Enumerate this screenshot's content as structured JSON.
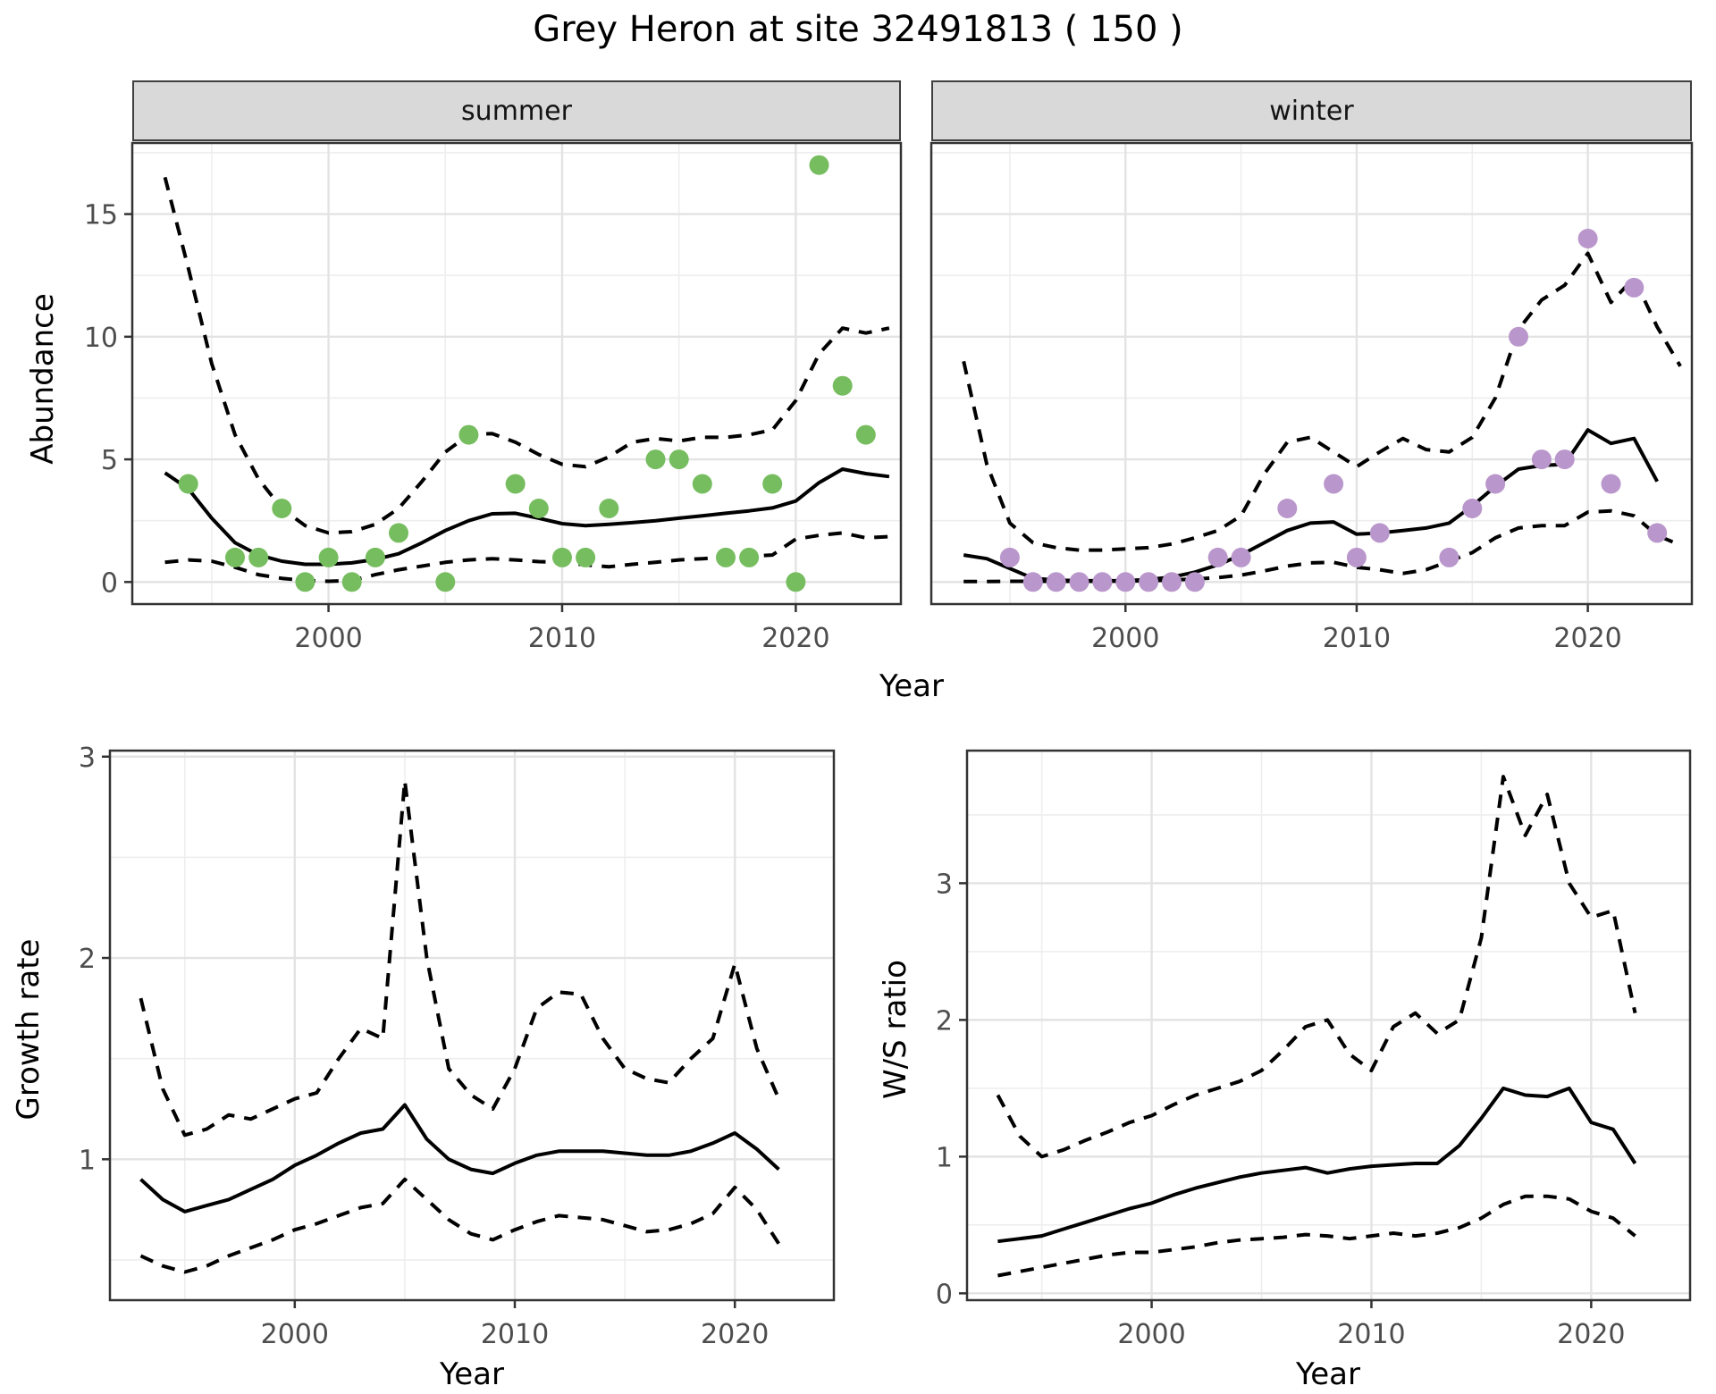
{
  "title": "Grey Heron at site 32491813 ( 150 )",
  "facets": {
    "summer": "summer",
    "winter": "winter"
  },
  "axis_titles": {
    "x": "Year",
    "y_abundance": "Abundance",
    "y_growth": "Growth rate",
    "y_ws": "W/S ratio"
  },
  "colors": {
    "summer_point": "#76bd5f",
    "winter_point": "#b996cb",
    "line": "#000000",
    "grid_major": "#e3e3e3",
    "grid_minor": "#eeeeee",
    "strip_bg": "#d9d9d9",
    "panel_border": "#333333",
    "tick_text": "#4d4d4d"
  },
  "chart_data": [
    {
      "id": "abundance-summer",
      "type": "scatter",
      "facet": "summer",
      "xlabel": "Year",
      "ylabel": "Abundance",
      "xlim": [
        1991.6,
        2024.5
      ],
      "ylim": [
        -0.9,
        17.9
      ],
      "x_ticks": [
        2000,
        2010,
        2020
      ],
      "x_minor": [
        1995,
        2005,
        2015
      ],
      "y_ticks": [
        0,
        5,
        10,
        15
      ],
      "y_minor": [
        2.5,
        7.5,
        12.5,
        17.5
      ],
      "points": {
        "years": [
          1994,
          1996,
          1997,
          1998,
          1999,
          2000,
          2001,
          2002,
          2003,
          2005,
          2006,
          2008,
          2009,
          2010,
          2011,
          2012,
          2014,
          2015,
          2016,
          2017,
          2018,
          2019,
          2020,
          2021,
          2022,
          2023
        ],
        "values": [
          4,
          1,
          1,
          3,
          0,
          1,
          0,
          1,
          2,
          0,
          6,
          4,
          3,
          1,
          1,
          3,
          5,
          5,
          4,
          1,
          1,
          4,
          0,
          17,
          8,
          6
        ]
      },
      "series": [
        {
          "name": "fit",
          "style": "solid",
          "years": [
            1993,
            1994,
            1995,
            1996,
            1997,
            1998,
            1999,
            2000,
            2001,
            2002,
            2003,
            2004,
            2005,
            2006,
            2007,
            2008,
            2009,
            2010,
            2011,
            2012,
            2013,
            2014,
            2015,
            2016,
            2017,
            2018,
            2019,
            2020,
            2021,
            2022,
            2023,
            2024
          ],
          "values": [
            4.45,
            3.8,
            2.6,
            1.6,
            1.1,
            0.85,
            0.72,
            0.72,
            0.78,
            0.92,
            1.15,
            1.6,
            2.1,
            2.5,
            2.78,
            2.8,
            2.6,
            2.38,
            2.3,
            2.35,
            2.42,
            2.5,
            2.6,
            2.7,
            2.8,
            2.9,
            3.02,
            3.3,
            4.05,
            4.6,
            4.42,
            4.3
          ]
        },
        {
          "name": "upper",
          "style": "dashed",
          "years": [
            1993,
            1994,
            1995,
            1996,
            1997,
            1998,
            1999,
            2000,
            2001,
            2002,
            2003,
            2004,
            2005,
            2006,
            2007,
            2008,
            2009,
            2010,
            2011,
            2012,
            2013,
            2014,
            2015,
            2016,
            2017,
            2018,
            2019,
            2020,
            2021,
            2022,
            2023,
            2024
          ],
          "values": [
            16.5,
            12.8,
            8.9,
            6.0,
            4.2,
            3.0,
            2.3,
            2.0,
            2.05,
            2.35,
            3.0,
            4.1,
            5.3,
            6.0,
            6.05,
            5.7,
            5.2,
            4.8,
            4.7,
            5.1,
            5.7,
            5.85,
            5.75,
            5.9,
            5.9,
            6.0,
            6.2,
            7.4,
            9.3,
            10.35,
            10.15,
            10.35
          ]
        },
        {
          "name": "lower",
          "style": "dashed",
          "years": [
            1993,
            1994,
            1995,
            1996,
            1997,
            1998,
            1999,
            2000,
            2001,
            2002,
            2003,
            2004,
            2005,
            2006,
            2007,
            2008,
            2009,
            2010,
            2011,
            2012,
            2013,
            2014,
            2015,
            2016,
            2017,
            2018,
            2019,
            2020,
            2021,
            2022,
            2023,
            2024
          ],
          "values": [
            0.8,
            0.9,
            0.85,
            0.6,
            0.3,
            0.15,
            0.06,
            0.03,
            0.06,
            0.3,
            0.5,
            0.65,
            0.8,
            0.9,
            0.95,
            0.9,
            0.83,
            0.8,
            0.7,
            0.62,
            0.72,
            0.8,
            0.9,
            0.95,
            1.0,
            1.05,
            1.1,
            1.75,
            1.9,
            2.0,
            1.8,
            1.85
          ]
        }
      ]
    },
    {
      "id": "abundance-winter",
      "type": "scatter",
      "facet": "winter",
      "xlabel": "Year",
      "ylabel": "Abundance",
      "xlim": [
        1991.6,
        2024.5
      ],
      "ylim": [
        -0.9,
        17.9
      ],
      "x_ticks": [
        2000,
        2010,
        2020
      ],
      "x_minor": [
        1995,
        2005,
        2015
      ],
      "y_ticks": [
        0,
        5,
        10,
        15
      ],
      "y_minor": [
        2.5,
        7.5,
        12.5,
        17.5
      ],
      "points": {
        "years": [
          1995,
          1996,
          1997,
          1998,
          1999,
          2000,
          2001,
          2002,
          2003,
          2004,
          2005,
          2007,
          2009,
          2010,
          2011,
          2014,
          2015,
          2016,
          2017,
          2018,
          2019,
          2020,
          2021,
          2022,
          2023
        ],
        "values": [
          1,
          0,
          0,
          0,
          0,
          0,
          0,
          0,
          0,
          1,
          1,
          3,
          4,
          1,
          2,
          1,
          3,
          4,
          10,
          5,
          5,
          14,
          4,
          12,
          2
        ]
      },
      "series": [
        {
          "name": "fit",
          "style": "solid",
          "years": [
            1993,
            1994,
            1995,
            1996,
            1997,
            1998,
            1999,
            2000,
            2001,
            2002,
            2003,
            2004,
            2005,
            2006,
            2007,
            2008,
            2009,
            2010,
            2011,
            2012,
            2013,
            2014,
            2015,
            2016,
            2017,
            2018,
            2019,
            2020,
            2021,
            2022,
            2023
          ],
          "values": [
            1.1,
            0.95,
            0.55,
            0.15,
            0.08,
            0.05,
            0.05,
            0.06,
            0.1,
            0.2,
            0.4,
            0.7,
            1.1,
            1.6,
            2.1,
            2.4,
            2.45,
            1.95,
            2.0,
            2.1,
            2.2,
            2.4,
            3.1,
            3.9,
            4.6,
            4.75,
            4.8,
            6.2,
            5.65,
            5.85,
            4.1
          ]
        },
        {
          "name": "upper",
          "style": "dashed",
          "years": [
            1993,
            1994,
            1995,
            1996,
            1997,
            1998,
            1999,
            2000,
            2001,
            2002,
            2003,
            2004,
            2005,
            2006,
            2007,
            2008,
            2009,
            2010,
            2011,
            2012,
            2013,
            2014,
            2015,
            2016,
            2017,
            2018,
            2019,
            2020,
            2021,
            2022,
            2023,
            2024
          ],
          "values": [
            9.0,
            4.8,
            2.4,
            1.6,
            1.4,
            1.3,
            1.3,
            1.35,
            1.4,
            1.55,
            1.8,
            2.1,
            2.7,
            4.4,
            5.7,
            5.9,
            5.3,
            4.7,
            5.3,
            5.85,
            5.4,
            5.3,
            5.9,
            7.5,
            10.3,
            11.5,
            12.1,
            13.4,
            11.4,
            12.4,
            10.4,
            8.8
          ]
        },
        {
          "name": "lower",
          "style": "dashed",
          "years": [
            1993,
            1994,
            1995,
            1996,
            1997,
            1998,
            1999,
            2000,
            2001,
            2002,
            2003,
            2004,
            2005,
            2006,
            2007,
            2008,
            2009,
            2010,
            2011,
            2012,
            2013,
            2014,
            2015,
            2016,
            2017,
            2018,
            2019,
            2020,
            2021,
            2022,
            2023,
            2024
          ],
          "values": [
            0.02,
            0.02,
            0.03,
            0.03,
            0.03,
            0.03,
            0.03,
            0.04,
            0.05,
            0.08,
            0.12,
            0.18,
            0.28,
            0.45,
            0.65,
            0.78,
            0.8,
            0.6,
            0.5,
            0.35,
            0.5,
            0.85,
            1.2,
            1.8,
            2.2,
            2.3,
            2.3,
            2.85,
            2.9,
            2.7,
            1.9,
            1.5
          ]
        }
      ]
    },
    {
      "id": "growth-rate",
      "type": "line",
      "xlabel": "Year",
      "ylabel": "Growth rate",
      "xlim": [
        1991.6,
        2024.5
      ],
      "ylim": [
        0.3,
        3.03
      ],
      "x_ticks": [
        2000,
        2010,
        2020
      ],
      "x_minor": [
        1995,
        2005,
        2015
      ],
      "y_ticks": [
        1,
        2,
        3
      ],
      "y_minor": [
        0.5,
        1.5,
        2.5
      ],
      "series": [
        {
          "name": "fit",
          "style": "solid",
          "years": [
            1993,
            1994,
            1995,
            1996,
            1997,
            1998,
            1999,
            2000,
            2001,
            2002,
            2003,
            2004,
            2005,
            2006,
            2007,
            2008,
            2009,
            2010,
            2011,
            2012,
            2013,
            2014,
            2015,
            2016,
            2017,
            2018,
            2019,
            2020,
            2021,
            2022
          ],
          "values": [
            0.9,
            0.8,
            0.74,
            0.77,
            0.8,
            0.85,
            0.9,
            0.97,
            1.02,
            1.08,
            1.13,
            1.15,
            1.27,
            1.1,
            1.0,
            0.95,
            0.93,
            0.98,
            1.02,
            1.04,
            1.04,
            1.04,
            1.03,
            1.02,
            1.02,
            1.04,
            1.08,
            1.13,
            1.05,
            0.95
          ]
        },
        {
          "name": "upper",
          "style": "dashed",
          "years": [
            1993,
            1994,
            1995,
            1996,
            1997,
            1998,
            1999,
            2000,
            2001,
            2002,
            2003,
            2004,
            2005,
            2006,
            2007,
            2008,
            2009,
            2010,
            2011,
            2012,
            2013,
            2014,
            2015,
            2016,
            2017,
            2018,
            2019,
            2020,
            2021,
            2022
          ],
          "values": [
            1.8,
            1.35,
            1.12,
            1.15,
            1.22,
            1.2,
            1.25,
            1.3,
            1.33,
            1.5,
            1.65,
            1.6,
            2.88,
            2.0,
            1.45,
            1.32,
            1.25,
            1.45,
            1.75,
            1.83,
            1.82,
            1.6,
            1.45,
            1.4,
            1.38,
            1.5,
            1.6,
            1.97,
            1.55,
            1.3
          ]
        },
        {
          "name": "lower",
          "style": "dashed",
          "years": [
            1993,
            1994,
            1995,
            1996,
            1997,
            1998,
            1999,
            2000,
            2001,
            2002,
            2003,
            2004,
            2005,
            2006,
            2007,
            2008,
            2009,
            2010,
            2011,
            2012,
            2013,
            2014,
            2015,
            2016,
            2017,
            2018,
            2019,
            2020,
            2021,
            2022
          ],
          "values": [
            0.52,
            0.47,
            0.44,
            0.47,
            0.52,
            0.56,
            0.6,
            0.65,
            0.68,
            0.72,
            0.76,
            0.78,
            0.9,
            0.8,
            0.7,
            0.63,
            0.6,
            0.65,
            0.69,
            0.72,
            0.71,
            0.7,
            0.67,
            0.64,
            0.65,
            0.68,
            0.73,
            0.86,
            0.75,
            0.58
          ]
        }
      ]
    },
    {
      "id": "ws-ratio",
      "type": "line",
      "xlabel": "Year",
      "ylabel": "W/S ratio",
      "xlim": [
        1991.6,
        2024.5
      ],
      "ylim": [
        -0.05,
        3.97
      ],
      "x_ticks": [
        2000,
        2010,
        2020
      ],
      "x_minor": [
        1995,
        2005,
        2015
      ],
      "y_ticks": [
        0,
        1,
        2,
        3
      ],
      "y_minor": [
        0.5,
        1.5,
        2.5,
        3.5
      ],
      "series": [
        {
          "name": "fit",
          "style": "solid",
          "years": [
            1993,
            1994,
            1995,
            1996,
            1997,
            1998,
            1999,
            2000,
            2001,
            2002,
            2003,
            2004,
            2005,
            2006,
            2007,
            2008,
            2009,
            2010,
            2011,
            2012,
            2013,
            2014,
            2015,
            2016,
            2017,
            2018,
            2019,
            2020,
            2021,
            2022
          ],
          "values": [
            0.38,
            0.4,
            0.42,
            0.47,
            0.52,
            0.57,
            0.62,
            0.66,
            0.72,
            0.77,
            0.81,
            0.85,
            0.88,
            0.9,
            0.92,
            0.88,
            0.91,
            0.93,
            0.94,
            0.95,
            0.95,
            1.08,
            1.28,
            1.5,
            1.45,
            1.44,
            1.5,
            1.25,
            1.2,
            0.95
          ]
        },
        {
          "name": "upper",
          "style": "dashed",
          "years": [
            1993,
            1994,
            1995,
            1996,
            1997,
            1998,
            1999,
            2000,
            2001,
            2002,
            2003,
            2004,
            2005,
            2006,
            2007,
            2008,
            2009,
            2010,
            2011,
            2012,
            2013,
            2014,
            2015,
            2016,
            2017,
            2018,
            2019,
            2020,
            2021,
            2022
          ],
          "values": [
            1.45,
            1.15,
            1.0,
            1.05,
            1.12,
            1.18,
            1.25,
            1.3,
            1.38,
            1.45,
            1.5,
            1.55,
            1.63,
            1.78,
            1.95,
            2.0,
            1.75,
            1.63,
            1.95,
            2.05,
            1.9,
            2.0,
            2.6,
            3.78,
            3.35,
            3.65,
            3.0,
            2.75,
            2.8,
            2.05
          ]
        },
        {
          "name": "lower",
          "style": "dashed",
          "years": [
            1993,
            1994,
            1995,
            1996,
            1997,
            1998,
            1999,
            2000,
            2001,
            2002,
            2003,
            2004,
            2005,
            2006,
            2007,
            2008,
            2009,
            2010,
            2011,
            2012,
            2013,
            2014,
            2015,
            2016,
            2017,
            2018,
            2019,
            2020,
            2021,
            2022
          ],
          "values": [
            0.13,
            0.16,
            0.19,
            0.22,
            0.25,
            0.28,
            0.3,
            0.3,
            0.32,
            0.34,
            0.37,
            0.39,
            0.4,
            0.41,
            0.43,
            0.42,
            0.4,
            0.42,
            0.44,
            0.42,
            0.44,
            0.48,
            0.55,
            0.65,
            0.71,
            0.71,
            0.69,
            0.6,
            0.55,
            0.42
          ]
        }
      ]
    }
  ]
}
